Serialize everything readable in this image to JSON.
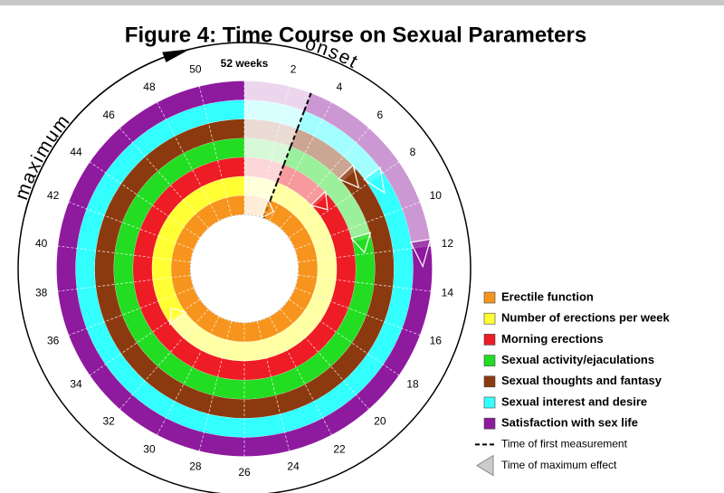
{
  "chart_data": {
    "type": "radial-timeline",
    "title": "Figure 4: Time Course on Sexual Parameters",
    "period": 52,
    "ticks": [
      {
        "value": 52,
        "label": "52 weeks"
      },
      2,
      4,
      6,
      8,
      10,
      12,
      14,
      16,
      18,
      20,
      22,
      24,
      26,
      28,
      30,
      32,
      34,
      36,
      38,
      40,
      42,
      44,
      46,
      48,
      50
    ],
    "arc_labels": {
      "maximum": "maximum",
      "onset": "onset"
    },
    "series": [
      {
        "name": "Erectile function",
        "color": "#f7941d",
        "first_measurement": 3,
        "maximum_effect": 3
      },
      {
        "name": "Number of erections per week",
        "color": "#ffff33",
        "first_measurement": 3,
        "maximum_effect": 34
      },
      {
        "name": "Morning erections",
        "color": "#ee1c25",
        "first_measurement": 3,
        "maximum_effect": 7
      },
      {
        "name": "Sexual activity/ejaculations",
        "color": "#22dd22",
        "first_measurement": 3,
        "maximum_effect": 11
      },
      {
        "name": "Sexual thoughts and fantasy",
        "color": "#8b3a0f",
        "first_measurement": 3,
        "maximum_effect": 7
      },
      {
        "name": "Sexual interest and desire",
        "color": "#33ffff",
        "first_measurement": 3,
        "maximum_effect": 8
      },
      {
        "name": "Satisfaction with sex life",
        "color": "#8e1a9e",
        "first_measurement": 3,
        "maximum_effect": 12
      }
    ],
    "marker_legend": [
      "Time of first measurement",
      "Time of maximum effect"
    ]
  }
}
